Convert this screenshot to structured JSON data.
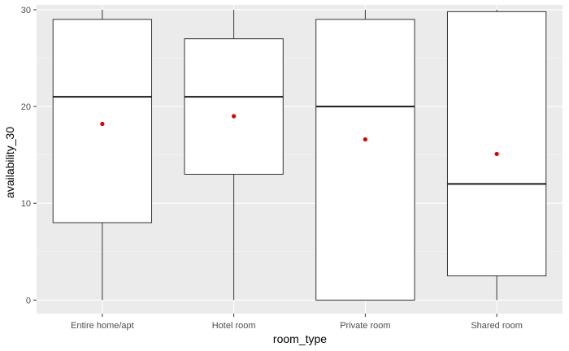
{
  "chart_data": {
    "type": "boxplot",
    "xlabel": "room_type",
    "ylabel": "availability_30",
    "ylim": [
      -1.4,
      30.5
    ],
    "yticks": [
      0,
      10,
      20,
      30
    ],
    "grid": true,
    "legend": "none",
    "categories": [
      "Entire home/apt",
      "Hotel room",
      "Private room",
      "Shared room"
    ],
    "boxes": [
      {
        "category": "Entire home/apt",
        "min": 0,
        "q1": 8,
        "median": 21,
        "q3": 29,
        "max": 30,
        "mean": 18.2
      },
      {
        "category": "Hotel room",
        "min": 0,
        "q1": 13,
        "median": 21,
        "q3": 27,
        "max": 30,
        "mean": 19.0
      },
      {
        "category": "Private room",
        "min": 0,
        "q1": 0,
        "median": 20,
        "q3": 29,
        "max": 30,
        "mean": 16.6
      },
      {
        "category": "Shared room",
        "min": 0,
        "q1": 2.5,
        "median": 12,
        "q3": 29.8,
        "max": 30,
        "mean": 15.1
      }
    ]
  },
  "colors": {
    "panel_background": "#ebebeb",
    "major_grid": "#ffffff",
    "minor_grid": "#f5f5f5",
    "box_fill": "#ffffff",
    "box_stroke": "#333333",
    "median_stroke": "#1a1a1a",
    "mean_point": "#e00000",
    "tick_text": "#4d4d4d",
    "axis_title_text": "#000000"
  }
}
